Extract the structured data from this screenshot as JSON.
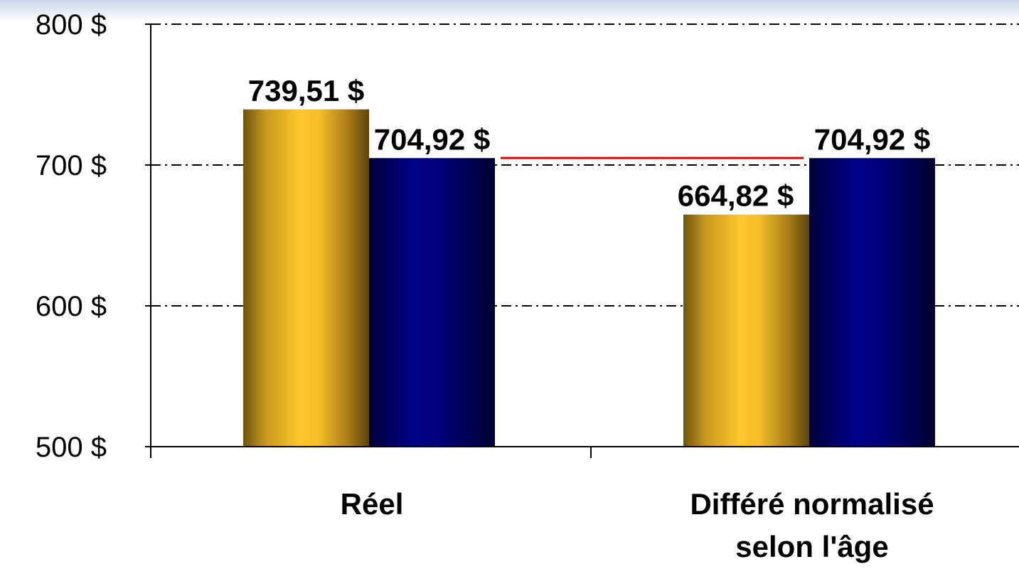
{
  "chart_data": {
    "type": "bar",
    "categories": [
      {
        "lines": [
          "Réel"
        ]
      },
      {
        "lines": [
          "Différé normalisé",
          "selon l'âge"
        ]
      }
    ],
    "series": [
      {
        "color": "#F5BE22",
        "values": [
          739.51,
          664.82
        ],
        "labels": [
          "739,51 $",
          "664,82 $"
        ]
      },
      {
        "color": "#000080",
        "values": [
          704.92,
          704.92
        ],
        "labels": [
          "704,92 $",
          "704,92 $"
        ]
      }
    ],
    "y_ticks": [
      {
        "value": 500,
        "label": "500 $"
      },
      {
        "value": 600,
        "label": "600 $"
      },
      {
        "value": 700,
        "label": "700 $"
      },
      {
        "value": 800,
        "label": "800 $"
      }
    ],
    "ylim": [
      500,
      800
    ],
    "grid": "dash-dot horizontal",
    "reference_line": {
      "value": 705,
      "color": "#E00000"
    },
    "title": "",
    "xlabel": "",
    "ylabel": ""
  }
}
